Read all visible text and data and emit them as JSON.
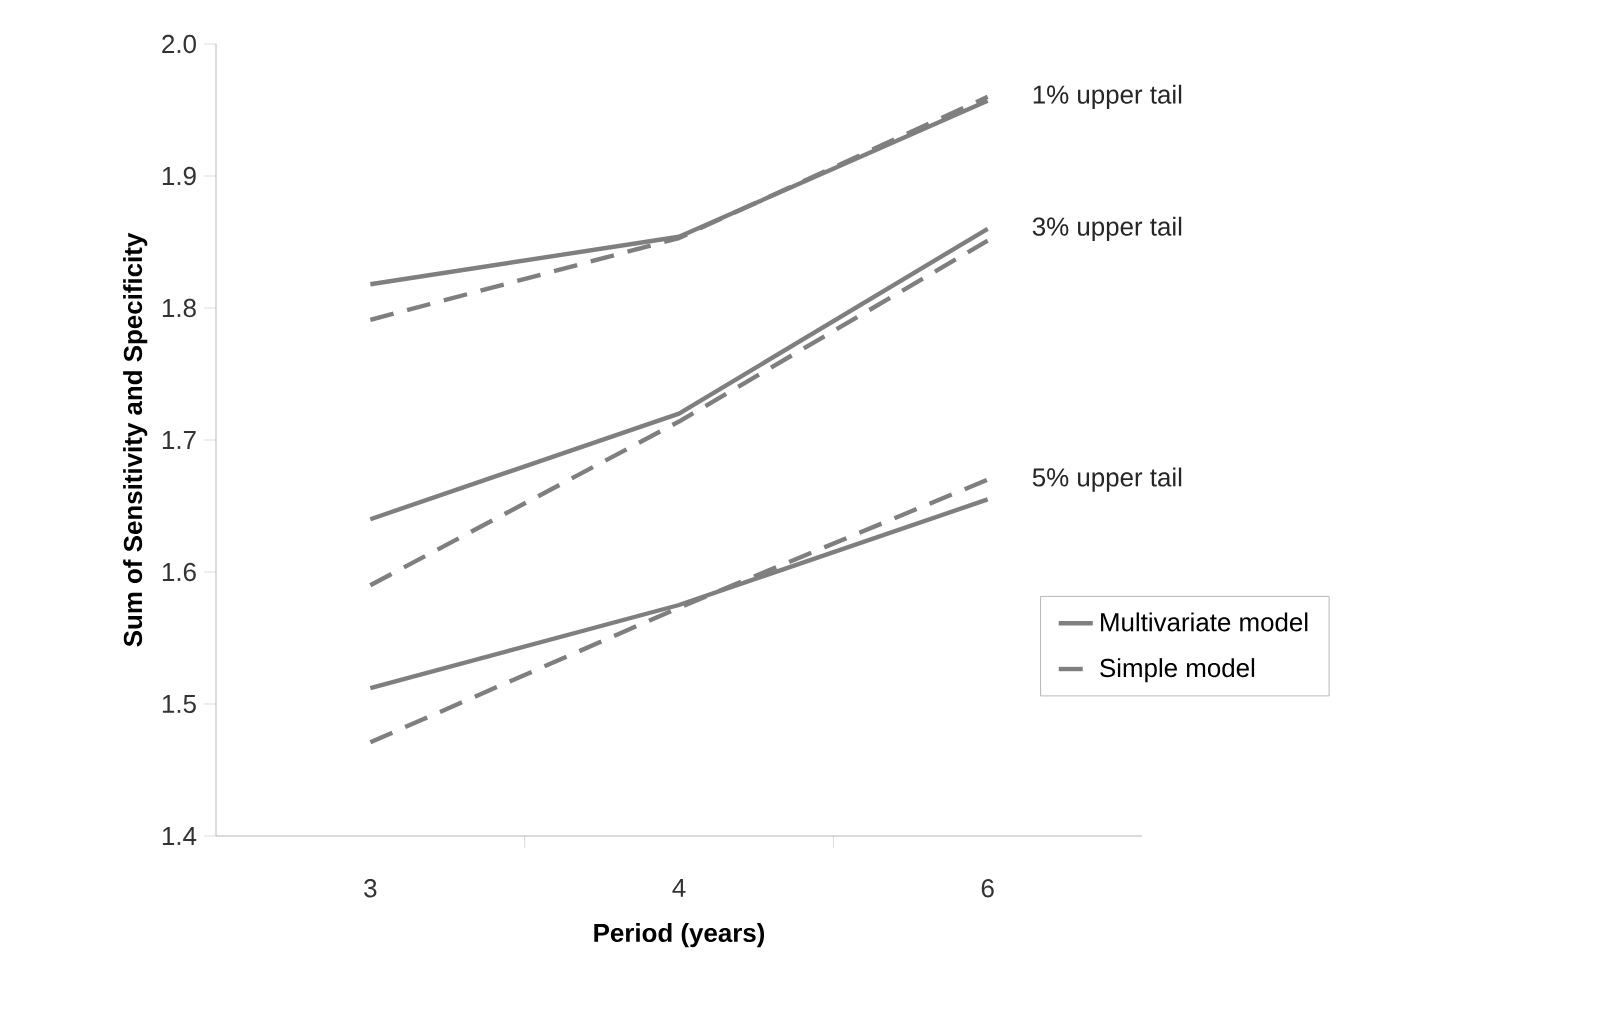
{
  "chart_data": {
    "type": "line",
    "xlabel": "Period (years)",
    "ylabel": "Sum of Sensitivity and Specificity",
    "categories": [
      "3",
      "4",
      "6"
    ],
    "series": [
      {
        "name": "Multivariate model",
        "color": "#7f7f7f",
        "line_style": "solid",
        "values": [
          1.818,
          1.854,
          1.957
        ]
      },
      {
        "name": "Simple model",
        "color": "#7f7f7f",
        "line_style": "dashed",
        "values": [
          1.791,
          1.853,
          1.96
        ]
      },
      {
        "color": "#7f7f7f",
        "line_style": "solid",
        "values": [
          1.64,
          1.72,
          1.86
        ]
      },
      {
        "color": "#7f7f7f",
        "line_style": "dashed",
        "values": [
          1.59,
          1.714,
          1.851
        ]
      },
      {
        "color": "#7f7f7f",
        "line_style": "solid",
        "values": [
          1.512,
          1.575,
          1.655
        ]
      },
      {
        "color": "#7f7f7f",
        "line_style": "dashed",
        "values": [
          1.471,
          1.573,
          1.67
        ]
      }
    ],
    "annotations": [
      {
        "text": "1% upper tail",
        "x": "6",
        "y": 1.96
      },
      {
        "text": "3% upper tail",
        "x": "6",
        "y": 1.86
      },
      {
        "text": "5% upper tail",
        "x": "6",
        "y": 1.67
      }
    ],
    "ylim": [
      1.4,
      2.0
    ],
    "yticks": [
      {
        "value": 1.4,
        "label": "1.4"
      },
      {
        "value": 1.5,
        "label": "1.5"
      },
      {
        "value": 1.6,
        "label": "1.6"
      },
      {
        "value": 1.7,
        "label": "1.7"
      },
      {
        "value": 1.8,
        "label": "1.8"
      },
      {
        "value": 1.9,
        "label": "1.9"
      },
      {
        "value": 2.0,
        "label": "2.0"
      }
    ],
    "legend": "right",
    "grid": false
  }
}
